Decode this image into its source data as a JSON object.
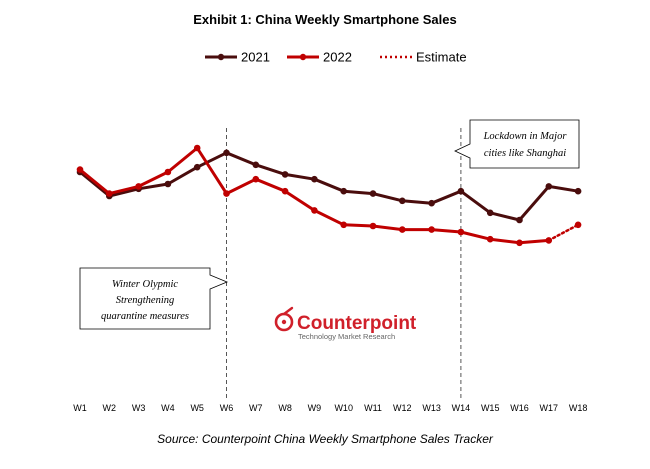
{
  "chart_data": {
    "type": "line",
    "title": "Exhibit 1: China Weekly Smartphone Sales",
    "categories": [
      "W1",
      "W2",
      "W3",
      "W4",
      "W5",
      "W6",
      "W7",
      "W8",
      "W9",
      "W10",
      "W11",
      "W12",
      "W13",
      "W14",
      "W15",
      "W16",
      "W17",
      "W18"
    ],
    "ylim": [
      0,
      100
    ],
    "grid": false,
    "legend_position": "top-center",
    "series": [
      {
        "name": "2021",
        "color": "#4a0d0d",
        "style": "solid",
        "values": [
          70,
          60,
          63,
          65,
          72,
          78,
          73,
          69,
          67,
          62,
          61,
          58,
          57,
          62,
          53,
          50,
          64,
          62
        ]
      },
      {
        "name": "2022",
        "color": "#c00000",
        "style": "solid",
        "values": [
          71,
          61,
          64,
          70,
          80,
          61,
          67,
          62,
          54,
          48,
          47.5,
          46,
          46,
          45,
          42,
          40.5,
          41.5,
          null
        ]
      },
      {
        "name": "Estimate",
        "color": "#c00000",
        "style": "dotted",
        "values": [
          null,
          null,
          null,
          null,
          null,
          null,
          null,
          null,
          null,
          null,
          null,
          null,
          null,
          null,
          null,
          null,
          41.5,
          48
        ]
      }
    ],
    "vlines": [
      {
        "at": "W6",
        "style": "dashed"
      },
      {
        "at": "W14",
        "style": "dashed"
      }
    ],
    "annotations": [
      {
        "id": "lockdown",
        "lines": [
          "Lockdown in Major",
          "cities like Shanghai"
        ]
      },
      {
        "id": "olympic",
        "lines": [
          "Winter Olypmic",
          "Strengthening",
          "quarantine measures"
        ]
      }
    ],
    "source": "Source: Counterpoint China Weekly Smartphone Sales Tracker"
  },
  "brand": {
    "name": "Counterpoint",
    "tagline": "Technology Market Research",
    "color": "#d0202a"
  }
}
